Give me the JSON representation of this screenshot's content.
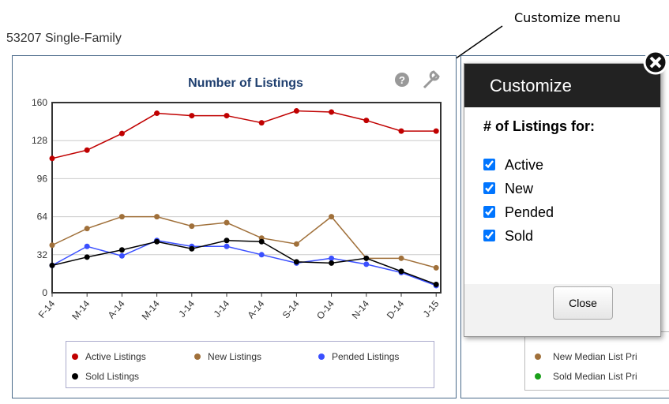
{
  "page": {
    "title": "53207 Single-Family",
    "annotation": "Customize menu"
  },
  "chart_data": {
    "type": "line",
    "title": "Number of Listings",
    "categories": [
      "F-14",
      "M-14",
      "A-14",
      "M-14",
      "J-14",
      "J-14",
      "A-14",
      "S-14",
      "O-14",
      "N-14",
      "D-14",
      "J-15"
    ],
    "series": [
      {
        "name": "Active Listings",
        "color": "#c00000",
        "values": [
          113,
          120,
          134,
          151,
          149,
          149,
          143,
          153,
          152,
          145,
          136,
          136
        ]
      },
      {
        "name": "New Listings",
        "color": "#a0703a",
        "values": [
          40,
          54,
          64,
          64,
          56,
          59,
          46,
          41,
          64,
          29,
          29,
          21
        ]
      },
      {
        "name": "Pended Listings",
        "color": "#3a4fff",
        "values": [
          23,
          39,
          31,
          44,
          39,
          39,
          32,
          25,
          29,
          24,
          17,
          6
        ]
      },
      {
        "name": "Sold Listings",
        "color": "#000000",
        "values": [
          23,
          30,
          36,
          43,
          37,
          44,
          43,
          26,
          25,
          29,
          18,
          7
        ]
      }
    ],
    "ylim": [
      0,
      160
    ],
    "yticks": [
      0,
      32,
      64,
      96,
      128,
      160
    ],
    "grid": true
  },
  "background_chart": {
    "legend": [
      "New Median List Pri",
      "Sold Median List Pri"
    ],
    "legend_colors": [
      "#a0703a",
      "#1aa01a"
    ]
  },
  "customize": {
    "title": "Customize",
    "prompt": "# of Listings for:",
    "options": [
      {
        "label": "Active",
        "checked": true
      },
      {
        "label": "New",
        "checked": true
      },
      {
        "label": "Pended",
        "checked": true
      },
      {
        "label": "Sold",
        "checked": true
      }
    ],
    "button": "Close"
  }
}
